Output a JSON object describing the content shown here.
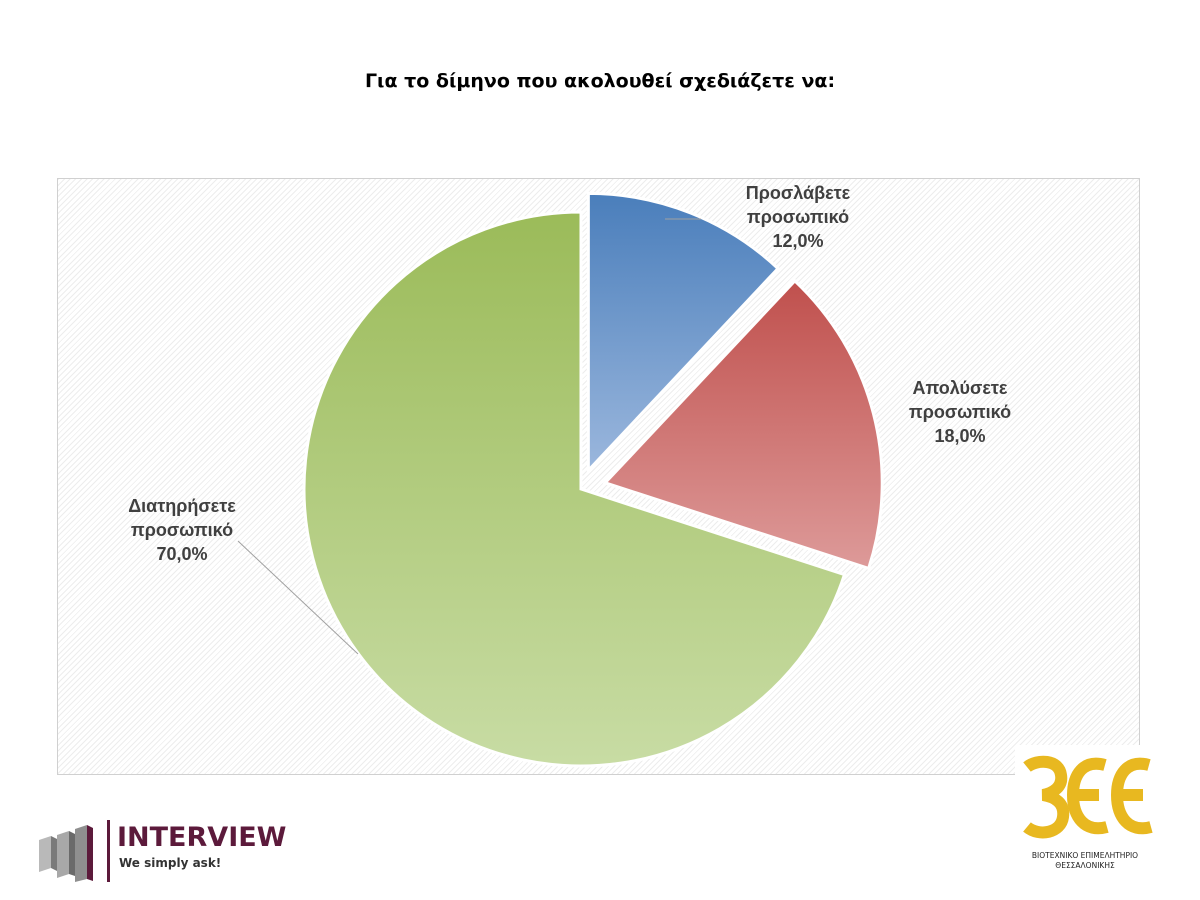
{
  "title": "Για το δίμηνο που ακολουθεί σχεδιάζετε να:",
  "chart_data": {
    "type": "pie",
    "slices": [
      {
        "label_line1": "Προσλάβετε",
        "label_line2": "προσωπικό",
        "value": 12.0,
        "value_label": "12,0%",
        "color_top": "#4a7ebb",
        "color_bottom": "#9bb7dd"
      },
      {
        "label_line1": "Απολύσετε",
        "label_line2": "προσωπικό",
        "value": 18.0,
        "value_label": "18,0%",
        "color_top": "#c0504d",
        "color_bottom": "#dd9a99"
      },
      {
        "label_line1": "Διατηρήσετε",
        "label_line2": "προσωπικό",
        "value": 70.0,
        "value_label": "70,0%",
        "color_top": "#9bbb59",
        "color_bottom": "#c8dca4"
      }
    ],
    "exploded": [
      "Προσλάβετε προσωπικό",
      "Απολύσετε προσωπικό"
    ]
  },
  "logos": {
    "interview": {
      "name": "INTERVIEW",
      "tagline": "We simply ask!",
      "color": "#5c1a3b"
    },
    "bee": {
      "mark": "ΒΕΘ",
      "caption_line1": "ΒΙΟΤΕΧΝΙΚΟ ΕΠΙΜΕΛΗΤΗΡΙΟ",
      "caption_line2": "ΘΕΣΣΑΛΟΝΙΚΗΣ",
      "color": "#e8b820"
    }
  }
}
